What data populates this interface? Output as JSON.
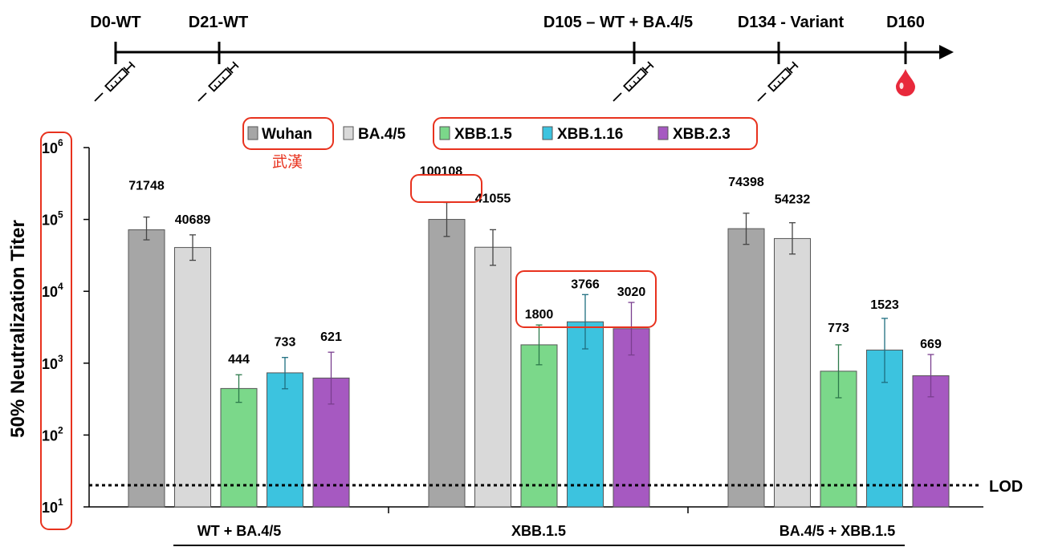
{
  "timeline": {
    "events": [
      {
        "label": "D0-WT",
        "marker": "syringe-icon"
      },
      {
        "label": "D21-WT",
        "marker": "syringe-icon"
      },
      {
        "label": "D105 – WT + BA.4/5",
        "marker": "syringe-icon"
      },
      {
        "label": "D134 - Variant",
        "marker": "syringe-icon"
      },
      {
        "label": "D160",
        "marker": "blood-drop-icon"
      }
    ]
  },
  "annotation": {
    "chinese_label": "武漢"
  },
  "colors": {
    "Wuhan": "#a6a6a6",
    "BA.4/5": "#d9d9d9",
    "XBB.1.5": "#7bd88a",
    "XBB.1.16": "#3cc3df",
    "XBB.2.3": "#a659c1",
    "highlight": "#e8321e",
    "drop": "#e8293b"
  },
  "chart_data": {
    "type": "bar",
    "ylabel": "50% Neutralization Titer",
    "yscale": "log",
    "ylim": [
      10,
      1000000
    ],
    "yticks": [
      {
        "base": "10",
        "exp": "1"
      },
      {
        "base": "10",
        "exp": "2"
      },
      {
        "base": "10",
        "exp": "3"
      },
      {
        "base": "10",
        "exp": "4"
      },
      {
        "base": "10",
        "exp": "5"
      },
      {
        "base": "10",
        "exp": "6"
      }
    ],
    "categories": [
      "WT + BA.4/5",
      "XBB.1.5",
      "BA.4/5 + XBB.1.5"
    ],
    "series": [
      {
        "name": "Wuhan",
        "values": [
          71748,
          100108,
          74398
        ],
        "err_low": [
          52000,
          58000,
          45000
        ],
        "err_high": [
          108000,
          172000,
          122000
        ]
      },
      {
        "name": "BA.4/5",
        "values": [
          40689,
          41055,
          54232
        ],
        "err_low": [
          27000,
          23000,
          33000
        ],
        "err_high": [
          61000,
          72000,
          90000
        ]
      },
      {
        "name": "XBB.1.5",
        "values": [
          444,
          1800,
          773
        ],
        "err_low": [
          285,
          950,
          330
        ],
        "err_high": [
          690,
          3400,
          1800
        ]
      },
      {
        "name": "XBB.1.16",
        "values": [
          733,
          3766,
          1523
        ],
        "err_low": [
          440,
          1580,
          540
        ],
        "err_high": [
          1200,
          9000,
          4200
        ]
      },
      {
        "name": "XBB.2.3",
        "values": [
          621,
          3020,
          669
        ],
        "err_low": [
          270,
          1300,
          340
        ],
        "err_high": [
          1420,
          7000,
          1320
        ]
      }
    ],
    "lod": {
      "value": 20,
      "label": "LOD"
    },
    "legend": [
      "Wuhan",
      "BA.4/5",
      "XBB.1.5",
      "XBB.1.16",
      "XBB.2.3"
    ]
  }
}
